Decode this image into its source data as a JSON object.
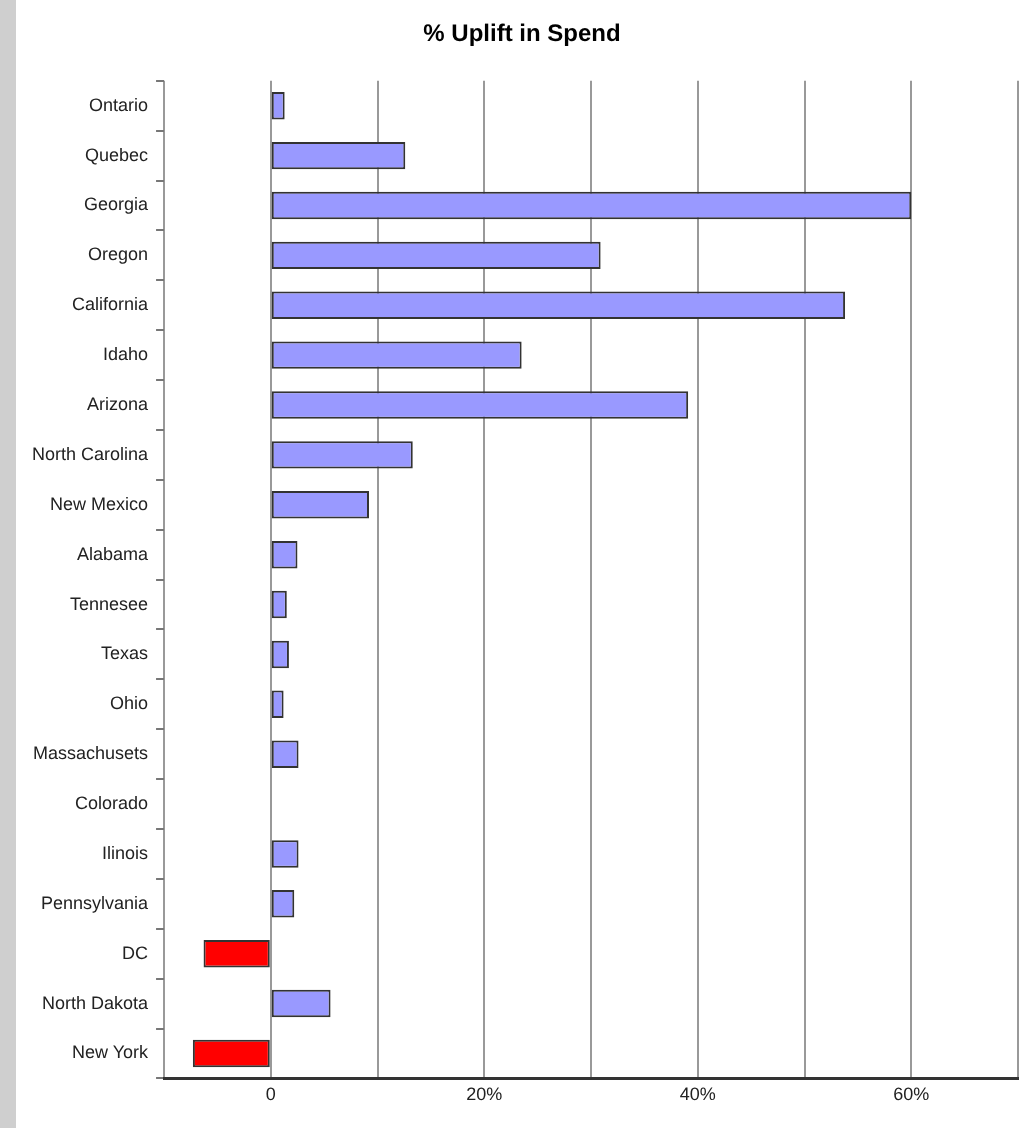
{
  "chart_data": {
    "type": "bar",
    "orientation": "horizontal",
    "title": "% Uplift in Spend",
    "categories": [
      "Ontario",
      "Quebec",
      "Georgia",
      "Oregon",
      "California",
      "Idaho",
      "Arizona",
      "North Carolina",
      "New Mexico",
      "Alabama",
      "Tennesee",
      "Texas",
      "Ohio",
      "Massachusets",
      "Colorado",
      "Ilinois",
      "Pennsylvania",
      "DC",
      "North Dakota",
      "New York"
    ],
    "values": [
      1.3,
      12.6,
      60,
      30.9,
      53.8,
      23.5,
      39.1,
      13.3,
      9.2,
      2.5,
      1.5,
      1.7,
      1.2,
      2.6,
      0.1,
      2.6,
      2.2,
      -6.3,
      5.6,
      -7.3
    ],
    "colors": [
      "#9999ff",
      "#9999ff",
      "#9999ff",
      "#9999ff",
      "#9999ff",
      "#9999ff",
      "#9999ff",
      "#9999ff",
      "#9999ff",
      "#9999ff",
      "#9999ff",
      "#9999ff",
      "#9999ff",
      "#9999ff",
      "#333333",
      "#9999ff",
      "#9999ff",
      "#ff0000",
      "#9999ff",
      "#ff0000"
    ],
    "xlim": [
      -10,
      70
    ],
    "xticks": [
      {
        "value": -10,
        "label": null
      },
      0,
      {
        "value": 10,
        "label": null
      },
      {
        "value": 20,
        "label": "20%"
      },
      {
        "value": 30,
        "label": null
      },
      {
        "value": 40,
        "label": "40%"
      },
      {
        "value": 50,
        "label": null
      },
      {
        "value": 60,
        "label": "60%"
      },
      {
        "value": 70,
        "label": null
      }
    ],
    "grid": "x"
  }
}
